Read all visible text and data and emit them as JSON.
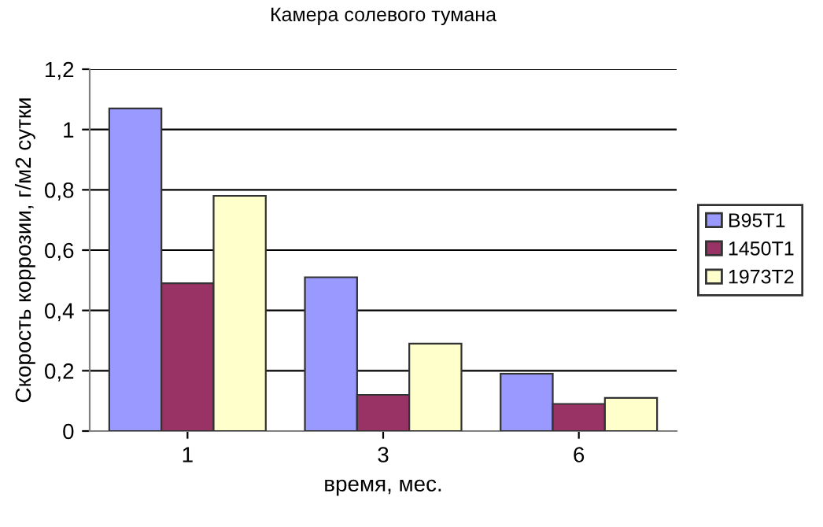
{
  "chart_data": {
    "type": "bar",
    "title": "Камера солевого тумана",
    "xlabel": "время, мес.",
    "ylabel": "Скорость коррозии, г/м2 сутки",
    "categories": [
      "1",
      "3",
      "6"
    ],
    "series": [
      {
        "name": "B95T1",
        "color": "#9999ff",
        "values": [
          1.07,
          0.51,
          0.19
        ]
      },
      {
        "name": "1450T1",
        "color": "#993366",
        "values": [
          0.49,
          0.12,
          0.09
        ]
      },
      {
        "name": "1973T2",
        "color": "#ffffcc",
        "values": [
          0.78,
          0.29,
          0.11
        ]
      }
    ],
    "ylim": [
      0,
      1.2
    ],
    "yticks": [
      {
        "value": 0,
        "label": "0"
      },
      {
        "value": 0.2,
        "label": "0,2"
      },
      {
        "value": 0.4,
        "label": "0,4"
      },
      {
        "value": 0.6,
        "label": "0,6"
      },
      {
        "value": 0.8,
        "label": "0,8"
      },
      {
        "value": 1,
        "label": "1"
      },
      {
        "value": 1.2,
        "label": "1,2"
      }
    ],
    "grid": "y",
    "legend": "right"
  }
}
